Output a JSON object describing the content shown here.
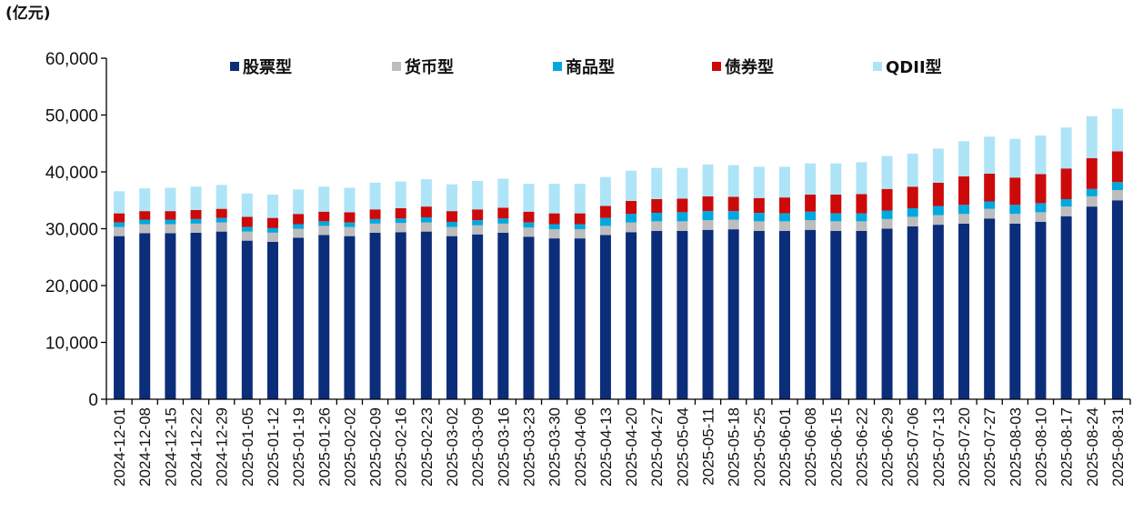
{
  "chart_data": {
    "type": "bar",
    "stacked": true,
    "unit_label": "(亿元)",
    "ylim": [
      0,
      60000
    ],
    "yticks": [
      0,
      10000,
      20000,
      30000,
      40000,
      50000,
      60000
    ],
    "ytick_labels": [
      "0",
      "10,000",
      "20,000",
      "30,000",
      "40,000",
      "50,000",
      "60,000"
    ],
    "grid": false,
    "legend_position": "top",
    "categories": [
      "2024-12-01",
      "2024-12-08",
      "2024-12-15",
      "2024-12-22",
      "2024-12-29",
      "2025-01-05",
      "2025-01-12",
      "2025-01-19",
      "2025-01-26",
      "2025-02-02",
      "2025-02-09",
      "2025-02-16",
      "2025-02-23",
      "2025-03-02",
      "2025-03-09",
      "2025-03-16",
      "2025-03-23",
      "2025-03-30",
      "2025-04-06",
      "2025-04-13",
      "2025-04-20",
      "2025-04-27",
      "2025-05-04",
      "2025-05-11",
      "2025-05-18",
      "2025-05-25",
      "2025-06-01",
      "2025-06-08",
      "2025-06-15",
      "2025-06-22",
      "2025-06-29",
      "2025-07-06",
      "2025-07-13",
      "2025-07-20",
      "2025-07-27",
      "2025-08-03",
      "2025-08-10",
      "2025-08-17",
      "2025-08-24",
      "2025-08-31"
    ],
    "series": [
      {
        "name": "股票型",
        "color": "#0b2d7a",
        "values": [
          28700,
          29200,
          29200,
          29300,
          29500,
          27900,
          27700,
          28400,
          28900,
          28700,
          29300,
          29400,
          29500,
          28700,
          29000,
          29300,
          28600,
          28300,
          28300,
          28900,
          29400,
          29600,
          29600,
          29800,
          29900,
          29600,
          29600,
          29800,
          29600,
          29600,
          30000,
          30400,
          30700,
          30900,
          31800,
          30900,
          31200,
          32200,
          33900,
          35000
        ]
      },
      {
        "name": "货币型",
        "color": "#bdbdbd",
        "values": [
          1600,
          1600,
          1600,
          1600,
          1600,
          1600,
          1600,
          1600,
          1600,
          1600,
          1600,
          1600,
          1600,
          1600,
          1600,
          1600,
          1600,
          1600,
          1600,
          1600,
          1700,
          1700,
          1700,
          1700,
          1700,
          1700,
          1700,
          1700,
          1700,
          1700,
          1700,
          1700,
          1700,
          1700,
          1700,
          1700,
          1700,
          1700,
          1800,
          1800
        ]
      },
      {
        "name": "商品型",
        "color": "#00a8e0",
        "values": [
          800,
          800,
          800,
          800,
          800,
          800,
          800,
          800,
          800,
          800,
          800,
          800,
          900,
          900,
          900,
          900,
          900,
          900,
          900,
          1400,
          1500,
          1500,
          1600,
          1600,
          1500,
          1500,
          1400,
          1500,
          1400,
          1400,
          1500,
          1500,
          1600,
          1600,
          1300,
          1600,
          1600,
          1300,
          1300,
          1400
        ]
      },
      {
        "name": "债券型",
        "color": "#cc0a0a",
        "values": [
          1600,
          1500,
          1500,
          1600,
          1600,
          1800,
          1800,
          1800,
          1700,
          1800,
          1700,
          1800,
          1900,
          1900,
          1900,
          1900,
          1900,
          1900,
          1900,
          2100,
          2300,
          2400,
          2400,
          2600,
          2500,
          2600,
          2800,
          3000,
          3300,
          3400,
          3800,
          3800,
          4100,
          5000,
          4900,
          4800,
          5100,
          5400,
          5400,
          5400
        ]
      },
      {
        "name": "QDII型",
        "color": "#aee4f7",
        "values": [
          3900,
          4000,
          4100,
          4100,
          4200,
          4100,
          4100,
          4300,
          4400,
          4300,
          4700,
          4700,
          4800,
          4700,
          5000,
          5100,
          4900,
          5200,
          5200,
          5100,
          5300,
          5500,
          5400,
          5600,
          5600,
          5500,
          5400,
          5500,
          5500,
          5600,
          5800,
          5800,
          6000,
          6200,
          6500,
          6800,
          6800,
          7200,
          7400,
          7500
        ]
      }
    ]
  }
}
